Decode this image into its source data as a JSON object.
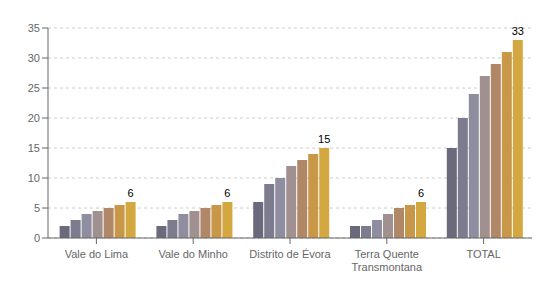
{
  "chart_data": {
    "type": "bar",
    "categories": [
      "Vale do Lima",
      "Vale do Minho",
      "Distrito de Évora",
      "Terra Quente\nTransmontana",
      "TOTAL"
    ],
    "series": [
      {
        "color": "#6a6a7c",
        "values": [
          2.0,
          2.0,
          6.0,
          2.0,
          15.0
        ]
      },
      {
        "color": "#7c7c8e",
        "values": [
          3.0,
          3.0,
          9.0,
          2.0,
          20.0
        ]
      },
      {
        "color": "#8e8ea0",
        "values": [
          4.0,
          4.0,
          10.0,
          3.0,
          24.0
        ]
      },
      {
        "color": "#a09090",
        "values": [
          4.5,
          4.5,
          12.0,
          4.0,
          27.0
        ]
      },
      {
        "color": "#b08868",
        "values": [
          5.0,
          5.0,
          13.0,
          5.0,
          29.0
        ]
      },
      {
        "color": "#c89848",
        "values": [
          5.5,
          5.5,
          14.0,
          5.5,
          31.0
        ]
      },
      {
        "color": "#d4a840",
        "values": [
          6.0,
          6.0,
          15.0,
          6.0,
          33.0
        ],
        "data_labels": true
      }
    ],
    "ylim": [
      0,
      35
    ],
    "yticks": [
      0,
      5,
      10,
      15,
      20,
      25,
      30,
      35
    ],
    "grid": true
  }
}
